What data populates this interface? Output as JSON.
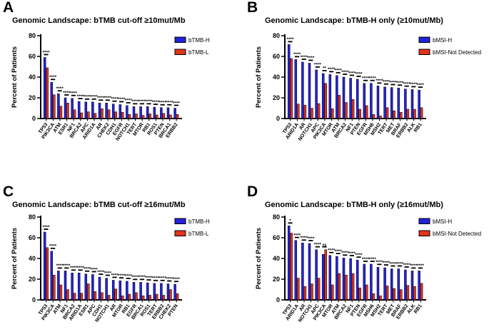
{
  "panels": [
    {
      "letter": "A"
    },
    {
      "letter": "B"
    },
    {
      "letter": "C"
    },
    {
      "letter": "D"
    }
  ],
  "colors": {
    "series_high": "#2222DC",
    "series_low": "#E2341B",
    "axis": "#000000",
    "background": "#FFFFFF"
  },
  "chart_data": [
    {
      "type": "bar",
      "title": "Genomic Landscape: bTMB cut-off ≥10mut/Mb",
      "xlabel": "",
      "ylabel": "Percent of Patients",
      "ylim": [
        0,
        80
      ],
      "yticks": [
        0,
        20,
        40,
        60,
        80
      ],
      "grid": false,
      "legend_position": "top-right",
      "categories": [
        "TP53",
        "PIK3CA",
        "ATM",
        "ESR1",
        "NF1",
        "BRCA2",
        "APC",
        "ARID1A",
        "AR",
        "CHEK2",
        "CDH1",
        "EGFR",
        "NOTCH1",
        "TERT",
        "MTOR",
        "RB1",
        "ROS1",
        "PTEN",
        "BRCA1",
        "ERBB2"
      ],
      "series": [
        {
          "name": "bTMB-H",
          "color": "#2222DC",
          "values": [
            59,
            35,
            24,
            20,
            19.5,
            16.5,
            16,
            16,
            15,
            15,
            14,
            13.5,
            12.5,
            11.5,
            11.5,
            11.5,
            11,
            10.5,
            10.5,
            10
          ]
        },
        {
          "name": "bTMB-L",
          "color": "#E2341B",
          "values": [
            49,
            23,
            12,
            15,
            8.5,
            5.5,
            6.5,
            5,
            9.5,
            8.5,
            6.5,
            6,
            4,
            4.5,
            3,
            4.5,
            3.5,
            5,
            3.5,
            4
          ]
        }
      ],
      "significance": [
        "****",
        "****",
        "****",
        "****",
        "****",
        "****",
        "****",
        "****",
        "****",
        "****",
        "****",
        "****",
        "****",
        "****",
        "****",
        "****",
        "****",
        "****",
        "****",
        "****"
      ]
    },
    {
      "type": "bar",
      "title": "Genomic Landscape: bTMB-H only (≥10mut/Mb)",
      "xlabel": "",
      "ylabel": "Percent of Patients",
      "ylim": [
        0,
        80
      ],
      "yticks": [
        0,
        20,
        40,
        60,
        80
      ],
      "grid": false,
      "legend_position": "top-right",
      "categories": [
        "TP53",
        "ARID1A",
        "AR",
        "NOTCH1",
        "APC",
        "PIK3CA",
        "MTOR",
        "ATM",
        "BRCA2",
        "NF1",
        "PTEN",
        "EGFR",
        "MSH6",
        "MSH2",
        "TERT",
        "MET",
        "BRAF",
        "ERBB2",
        "ALK",
        "RB1"
      ],
      "series": [
        {
          "name": "bMSI-H",
          "color": "#2222DC",
          "values": [
            71.5,
            57,
            54.5,
            53.5,
            47,
            43.5,
            42.5,
            41.5,
            40,
            39,
            38,
            34,
            34,
            31.5,
            30.5,
            30,
            29.5,
            28.5,
            28,
            27.5
          ]
        },
        {
          "name": "bMSI-Not Detected",
          "color": "#E2341B",
          "values": [
            58,
            14,
            13,
            10,
            14.5,
            34,
            9.5,
            22.5,
            15.5,
            18.5,
            9,
            12.5,
            4,
            2.5,
            10.5,
            7.5,
            6,
            9,
            9,
            10.5
          ]
        }
      ],
      "significance": [
        "****",
        "****",
        "****",
        "****",
        "****",
        "**",
        "****",
        "****",
        "****",
        "****",
        "****",
        "****",
        "****",
        "****",
        "****",
        "****",
        "****",
        "****",
        "****",
        "****"
      ]
    },
    {
      "type": "bar",
      "title": "Genomic Landscape: bTMB cut-off ≥16mut/Mb",
      "xlabel": "",
      "ylabel": "Percent of Patients",
      "ylim": [
        0,
        80
      ],
      "yticks": [
        0,
        20,
        40,
        60,
        80
      ],
      "grid": false,
      "legend_position": "top-right",
      "categories": [
        "TP53",
        "PIK3CA",
        "ATM",
        "NF1",
        "BRCA2",
        "ARID1A",
        "ESR1",
        "APC",
        "CDH1",
        "NOTCH1",
        "AR",
        "MTOR",
        "RB1",
        "EGFR",
        "BRCA1",
        "ROS1",
        "TERT",
        "ERBB2",
        "CHEK2",
        "PTEN"
      ],
      "series": [
        {
          "name": "bTMB-H",
          "color": "#2222DC",
          "values": [
            65.5,
            47,
            28,
            28,
            26,
            26,
            25,
            24.5,
            22,
            21,
            19,
            18.5,
            18,
            17,
            17,
            16.5,
            16,
            16,
            15.5,
            15
          ]
        },
        {
          "name": "bTMB-L",
          "color": "#E2341B",
          "values": [
            50.5,
            24,
            14.5,
            10,
            6.5,
            6.5,
            15.5,
            8,
            7,
            4.5,
            10.5,
            4,
            5.5,
            7,
            4,
            4.5,
            5.5,
            4.5,
            10,
            6
          ]
        }
      ],
      "significance": [
        "****",
        "****",
        "****",
        "****",
        "****",
        "****",
        "****",
        "****",
        "****",
        "****",
        "****",
        "****",
        "****",
        "****",
        "****",
        "****",
        "****",
        "****",
        "****",
        "****"
      ]
    },
    {
      "type": "bar",
      "title": "Genomic Landscape: bTMB-H only (≥16mut/Mb)",
      "xlabel": "",
      "ylabel": "Percent of Patients",
      "ylim": [
        0,
        80
      ],
      "yticks": [
        0,
        20,
        40,
        60,
        80
      ],
      "grid": false,
      "legend_position": "top-right",
      "categories": [
        "TP53",
        "ARID1A",
        "AR",
        "NOTCH1",
        "APC",
        "PIK3CA",
        "MTOR",
        "ATM",
        "BRCA2",
        "NF1",
        "PTEN",
        "EGFR",
        "MSH6",
        "MSH2",
        "TERT",
        "MET",
        "BRAF",
        "ERBB2",
        "ALK",
        "RB1"
      ],
      "series": [
        {
          "name": "bMSI-H",
          "color": "#2222DC",
          "values": [
            71.5,
            57.5,
            55,
            54.5,
            48.5,
            44,
            43,
            42,
            40.5,
            40,
            38.5,
            34.5,
            34.5,
            31.5,
            31,
            30,
            30,
            29,
            28,
            28
          ]
        },
        {
          "name": "bMSI-Not Detected",
          "color": "#E2341B",
          "values": [
            64.5,
            21,
            13,
            15.5,
            21,
            48.5,
            14.5,
            25.5,
            24,
            25.5,
            11.5,
            14.5,
            6,
            4,
            13.5,
            11,
            10,
            14,
            13,
            16
          ]
        }
      ],
      "significance": [
        "*",
        "****",
        "****",
        "****",
        "****",
        "ns",
        "****",
        "****",
        "****",
        "****",
        "****",
        "****",
        "****",
        "****",
        "****",
        "****",
        "****",
        "****",
        "****",
        "****"
      ]
    }
  ]
}
